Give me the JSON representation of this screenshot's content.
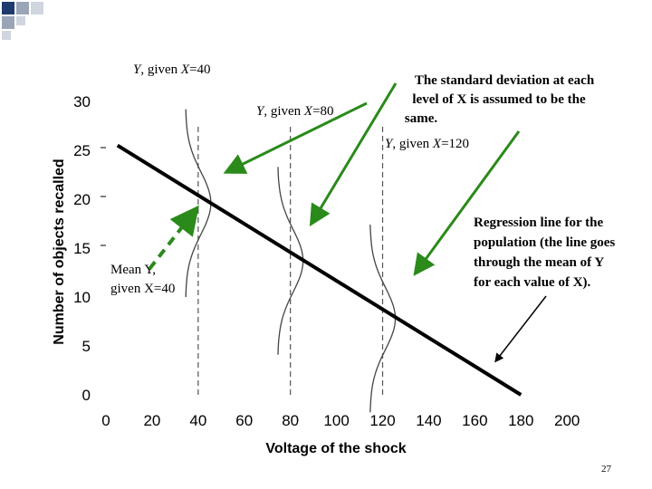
{
  "slide": {
    "page_number": "27",
    "deco_colors": [
      "#1f3a6e",
      "#9aa5b8",
      "#d0d5df"
    ]
  },
  "colors": {
    "regression_line": "#000000",
    "green_arrow": "#2a8a1a",
    "dashed_guides": "#555555",
    "distribution_curve": "#444444"
  },
  "chart_data": {
    "type": "line",
    "xlabel": "Voltage of the shock",
    "ylabel": "Number of objects recalled",
    "xlim": [
      0,
      200
    ],
    "ylim": [
      0,
      30
    ],
    "x_ticks": [
      "0",
      "20",
      "40",
      "60",
      "80",
      "100",
      "120",
      "140",
      "160",
      "180",
      "200"
    ],
    "y_ticks": [
      "0",
      "5",
      "10",
      "15",
      "20",
      "25",
      "30"
    ],
    "regression_line": {
      "x": [
        5,
        180
      ],
      "y": [
        25.5,
        0
      ]
    },
    "distributions_at_x": [
      40,
      80,
      120
    ],
    "means_at_x": [
      {
        "x": 40,
        "y": 19.6
      },
      {
        "x": 80,
        "y": 13.7
      },
      {
        "x": 120,
        "y": 7.8
      }
    ],
    "annotations": {
      "dist_40_label": [
        "Y",
        ", given ",
        "X",
        "=40"
      ],
      "dist_80_label": [
        "Y",
        ", given ",
        "X",
        "=80"
      ],
      "dist_120_label": [
        "Y",
        ", given ",
        "X",
        "=120"
      ],
      "std_note": [
        "The standard deviation at each",
        "level of X is assumed to be the",
        "same."
      ],
      "mean_label": [
        "Mean Y,",
        "given X=40"
      ],
      "regression_note": [
        "Regression line for the",
        "population (the line goes",
        "through the mean of Y",
        "for each value of X)."
      ]
    }
  }
}
